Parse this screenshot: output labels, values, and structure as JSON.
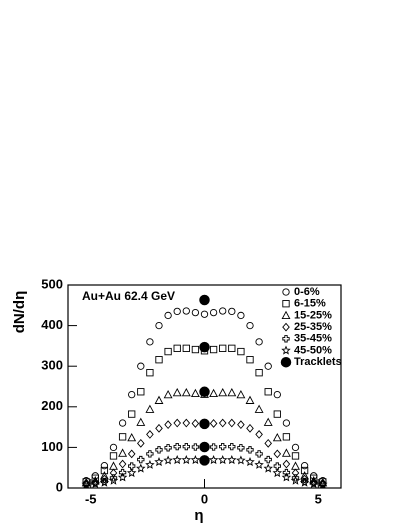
{
  "chart_data": {
    "type": "scatter",
    "annotation": "Au+Au 62.4 GeV",
    "x_label": "η",
    "y_label": "dN/dη",
    "xlim": [
      -6,
      6
    ],
    "xticks": [
      -5,
      0,
      5
    ],
    "ylim": [
      0,
      500
    ],
    "yticks": [
      0,
      100,
      200,
      300,
      400,
      500
    ],
    "legend": "upper right",
    "x": [
      -5.2,
      -4.8,
      -4.4,
      -4.0,
      -3.6,
      -3.2,
      -2.8,
      -2.4,
      -2.0,
      -1.6,
      -1.2,
      -0.8,
      -0.4,
      0.0,
      0.4,
      0.8,
      1.2,
      1.6,
      2.0,
      2.4,
      2.8,
      3.2,
      3.6,
      4.0,
      4.4,
      4.8,
      5.2
    ],
    "series": [
      {
        "name": "0-6%",
        "marker": "circle",
        "color": "#000000",
        "values": [
          18,
          30,
          55,
          100,
          160,
          230,
          300,
          360,
          400,
          425,
          435,
          436,
          432,
          428,
          432,
          436,
          435,
          425,
          400,
          360,
          300,
          230,
          160,
          100,
          55,
          30,
          18
        ]
      },
      {
        "name": "6-15%",
        "marker": "square",
        "color": "#000000",
        "values": [
          15,
          24,
          43,
          79,
          126,
          182,
          237,
          284,
          316,
          336,
          344,
          344,
          341,
          338,
          341,
          344,
          344,
          336,
          316,
          284,
          237,
          182,
          126,
          79,
          43,
          24,
          15
        ]
      },
      {
        "name": "15-25%",
        "marker": "triangle",
        "color": "#000000",
        "values": [
          13,
          18,
          30,
          54,
          86,
          124,
          162,
          194,
          216,
          230,
          235,
          235,
          233,
          231,
          233,
          235,
          235,
          230,
          216,
          194,
          162,
          124,
          86,
          54,
          30,
          18,
          13
        ]
      },
      {
        "name": "25-35%",
        "marker": "diamond",
        "color": "#000000",
        "values": [
          12,
          15,
          22,
          37,
          59,
          84,
          110,
          132,
          147,
          156,
          160,
          160,
          159,
          157,
          159,
          160,
          160,
          156,
          147,
          132,
          110,
          84,
          59,
          37,
          22,
          15,
          12
        ]
      },
      {
        "name": "35-45%",
        "marker": "cross",
        "color": "#000000",
        "values": [
          10,
          12,
          16,
          25,
          38,
          54,
          70,
          84,
          94,
          99,
          102,
          102,
          101,
          100,
          101,
          102,
          102,
          99,
          94,
          84,
          70,
          54,
          38,
          25,
          16,
          12,
          10
        ]
      },
      {
        "name": "45-50%",
        "marker": "star",
        "color": "#000000",
        "values": [
          9,
          10,
          13,
          18,
          26,
          37,
          48,
          57,
          64,
          68,
          69,
          69,
          69,
          68,
          69,
          69,
          69,
          68,
          64,
          57,
          48,
          37,
          26,
          18,
          13,
          10,
          9
        ]
      },
      {
        "name": "Tracklets",
        "marker": "dot",
        "color": "#000000",
        "x": [
          0,
          0,
          0,
          0,
          0,
          0
        ],
        "values": [
          463,
          347,
          237,
          158,
          101,
          68
        ]
      }
    ]
  }
}
